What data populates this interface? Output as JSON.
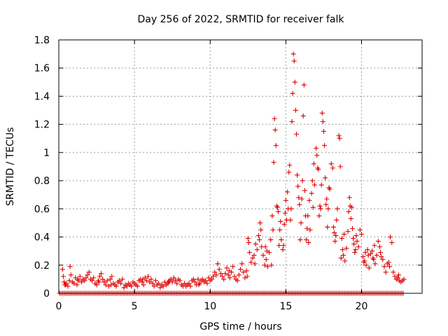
{
  "chart_data": {
    "type": "scatter",
    "title": "Day 256 of 2022, SRMTID for receiver falk",
    "xlabel": "GPS time / hours",
    "ylabel": "SRMTID / TECUs",
    "xlim": [
      0,
      24
    ],
    "ylim": [
      0,
      1.8
    ],
    "x_ticks": [
      0,
      5,
      10,
      15,
      20
    ],
    "y_ticks": [
      0,
      0.2,
      0.4,
      0.6,
      0.8,
      1,
      1.2,
      1.4,
      1.6,
      1.8
    ],
    "x_tick_labels": [
      "0",
      "5",
      "10",
      "15",
      "20"
    ],
    "y_tick_labels": [
      "0",
      "0.2",
      "0.4",
      "0.6",
      "0.8",
      "1",
      "1.2",
      "1.4",
      "1.6",
      "1.8"
    ],
    "grid": true,
    "marker": "+",
    "color": "#dd0000",
    "zero_points": {
      "x_start": 0.05,
      "x_end": 22.8,
      "x_step": 0.1,
      "y": 0
    },
    "series": [
      {
        "name": "SRMTID",
        "points": [
          [
            0.25,
            0.17
          ],
          [
            0.3,
            0.12
          ],
          [
            0.35,
            0.08
          ],
          [
            0.4,
            0.06
          ],
          [
            0.5,
            0.07
          ],
          [
            0.6,
            0.05
          ],
          [
            0.7,
            0.09
          ],
          [
            0.75,
            0.19
          ],
          [
            0.8,
            0.13
          ],
          [
            0.9,
            0.08
          ],
          [
            1.0,
            0.07
          ],
          [
            1.1,
            0.11
          ],
          [
            1.2,
            0.06
          ],
          [
            1.3,
            0.09
          ],
          [
            1.4,
            0.12
          ],
          [
            1.5,
            0.08
          ],
          [
            1.6,
            0.1
          ],
          [
            1.7,
            0.09
          ],
          [
            1.8,
            0.11
          ],
          [
            1.9,
            0.13
          ],
          [
            2.0,
            0.15
          ],
          [
            2.1,
            0.1
          ],
          [
            2.2,
            0.09
          ],
          [
            2.3,
            0.11
          ],
          [
            2.4,
            0.07
          ],
          [
            2.5,
            0.06
          ],
          [
            2.6,
            0.09
          ],
          [
            2.7,
            0.12
          ],
          [
            2.8,
            0.14
          ],
          [
            2.9,
            0.1
          ],
          [
            3.0,
            0.08
          ],
          [
            3.1,
            0.06
          ],
          [
            3.2,
            0.09
          ],
          [
            3.3,
            0.05
          ],
          [
            3.4,
            0.1
          ],
          [
            3.5,
            0.12
          ],
          [
            3.6,
            0.07
          ],
          [
            3.7,
            0.06
          ],
          [
            3.8,
            0.05
          ],
          [
            3.9,
            0.08
          ],
          [
            4.0,
            0.09
          ],
          [
            4.1,
            0.07
          ],
          [
            4.2,
            0.1
          ],
          [
            4.3,
            0.04
          ],
          [
            4.4,
            0.06
          ],
          [
            4.5,
            0.05
          ],
          [
            4.6,
            0.07
          ],
          [
            4.7,
            0.06
          ],
          [
            4.8,
            0.05
          ],
          [
            4.9,
            0.08
          ],
          [
            5.0,
            0.07
          ],
          [
            5.1,
            0.06
          ],
          [
            5.2,
            0.05
          ],
          [
            5.3,
            0.09
          ],
          [
            5.4,
            0.1
          ],
          [
            5.5,
            0.08
          ],
          [
            5.6,
            0.06
          ],
          [
            5.7,
            0.11
          ],
          [
            5.8,
            0.09
          ],
          [
            5.9,
            0.12
          ],
          [
            6.0,
            0.08
          ],
          [
            6.1,
            0.1
          ],
          [
            6.2,
            0.07
          ],
          [
            6.3,
            0.05
          ],
          [
            6.4,
            0.09
          ],
          [
            6.5,
            0.06
          ],
          [
            6.6,
            0.07
          ],
          [
            6.7,
            0.04
          ],
          [
            6.8,
            0.06
          ],
          [
            6.9,
            0.05
          ],
          [
            7.0,
            0.08
          ],
          [
            7.1,
            0.06
          ],
          [
            7.2,
            0.07
          ],
          [
            7.3,
            0.09
          ],
          [
            7.4,
            0.1
          ],
          [
            7.5,
            0.08
          ],
          [
            7.6,
            0.11
          ],
          [
            7.7,
            0.09
          ],
          [
            7.8,
            0.07
          ],
          [
            7.9,
            0.1
          ],
          [
            8.0,
            0.09
          ],
          [
            8.1,
            0.06
          ],
          [
            8.2,
            0.05
          ],
          [
            8.3,
            0.07
          ],
          [
            8.4,
            0.05
          ],
          [
            8.5,
            0.06
          ],
          [
            8.6,
            0.07
          ],
          [
            8.7,
            0.05
          ],
          [
            8.8,
            0.09
          ],
          [
            8.9,
            0.1
          ],
          [
            9.0,
            0.08
          ],
          [
            9.1,
            0.06
          ],
          [
            9.2,
            0.1
          ],
          [
            9.3,
            0.07
          ],
          [
            9.4,
            0.09
          ],
          [
            9.5,
            0.1
          ],
          [
            9.6,
            0.08
          ],
          [
            9.7,
            0.09
          ],
          [
            9.8,
            0.07
          ],
          [
            9.9,
            0.11
          ],
          [
            10.0,
            0.09
          ],
          [
            10.1,
            0.1
          ],
          [
            10.2,
            0.12
          ],
          [
            10.3,
            0.15
          ],
          [
            10.4,
            0.13
          ],
          [
            10.5,
            0.21
          ],
          [
            10.6,
            0.17
          ],
          [
            10.7,
            0.14
          ],
          [
            10.8,
            0.12
          ],
          [
            10.9,
            0.1
          ],
          [
            11.0,
            0.14
          ],
          [
            11.1,
            0.18
          ],
          [
            11.2,
            0.13
          ],
          [
            11.3,
            0.11
          ],
          [
            11.4,
            0.15
          ],
          [
            11.5,
            0.19
          ],
          [
            11.6,
            0.12
          ],
          [
            11.7,
            0.1
          ],
          [
            11.8,
            0.09
          ],
          [
            11.9,
            0.13
          ],
          [
            12.0,
            0.17
          ],
          [
            12.1,
            0.21
          ],
          [
            12.2,
            0.15
          ],
          [
            12.3,
            0.11
          ],
          [
            12.4,
            0.16
          ],
          [
            12.5,
            0.39
          ],
          [
            12.6,
            0.29
          ],
          [
            12.7,
            0.22
          ],
          [
            12.8,
            0.25
          ],
          [
            12.9,
            0.27
          ],
          [
            13.0,
            0.35
          ],
          [
            13.1,
            0.31
          ],
          [
            13.2,
            0.41
          ],
          [
            13.3,
            0.5
          ],
          [
            13.4,
            0.33
          ],
          [
            13.5,
            0.27
          ],
          [
            13.6,
            0.2
          ],
          [
            13.7,
            0.24
          ],
          [
            13.8,
            0.19
          ],
          [
            13.9,
            0.29
          ],
          [
            14.0,
            0.38
          ],
          [
            14.1,
            0.55
          ],
          [
            14.2,
            0.93
          ],
          [
            14.25,
            1.24
          ],
          [
            14.3,
            1.16
          ],
          [
            14.35,
            1.05
          ],
          [
            14.4,
            0.62
          ],
          [
            14.5,
            0.58
          ],
          [
            14.6,
            0.45
          ],
          [
            14.7,
            0.38
          ],
          [
            14.8,
            0.31
          ],
          [
            14.9,
            0.49
          ],
          [
            15.0,
            0.66
          ],
          [
            15.05,
            0.52
          ],
          [
            15.1,
            0.72
          ],
          [
            15.2,
            0.86
          ],
          [
            15.25,
            0.91
          ],
          [
            15.3,
            0.52
          ],
          [
            15.35,
            0.6
          ],
          [
            15.4,
            1.22
          ],
          [
            15.45,
            1.42
          ],
          [
            15.5,
            1.7
          ],
          [
            15.55,
            1.65
          ],
          [
            15.6,
            1.5
          ],
          [
            15.65,
            1.3
          ],
          [
            15.7,
            1.13
          ],
          [
            15.75,
            0.84
          ],
          [
            15.8,
            0.76
          ],
          [
            15.9,
            0.63
          ],
          [
            16.0,
            0.5
          ],
          [
            16.1,
            0.8
          ],
          [
            16.15,
            1.26
          ],
          [
            16.2,
            1.48
          ],
          [
            16.25,
            0.73
          ],
          [
            16.3,
            0.55
          ],
          [
            16.4,
            0.46
          ],
          [
            16.5,
            0.36
          ],
          [
            16.6,
            0.45
          ],
          [
            16.7,
            0.71
          ],
          [
            16.8,
            0.61
          ],
          [
            16.9,
            0.77
          ],
          [
            17.0,
            1.03
          ],
          [
            17.05,
            0.98
          ],
          [
            17.1,
            0.89
          ],
          [
            17.2,
            0.55
          ],
          [
            17.3,
            0.6
          ],
          [
            17.4,
            1.28
          ],
          [
            17.45,
            1.22
          ],
          [
            17.5,
            1.15
          ],
          [
            17.55,
            1.05
          ],
          [
            17.6,
            0.82
          ],
          [
            17.7,
            0.67
          ],
          [
            17.8,
            0.6
          ],
          [
            17.9,
            0.74
          ],
          [
            18.0,
            0.92
          ],
          [
            18.1,
            0.89
          ],
          [
            18.2,
            0.43
          ],
          [
            18.3,
            0.41
          ],
          [
            18.4,
            0.6
          ],
          [
            18.5,
            1.12
          ],
          [
            18.55,
            1.1
          ],
          [
            18.6,
            0.9
          ],
          [
            18.7,
            0.39
          ],
          [
            18.8,
            0.27
          ],
          [
            18.9,
            0.23
          ],
          [
            19.0,
            0.32
          ],
          [
            19.1,
            0.44
          ],
          [
            19.2,
            0.68
          ],
          [
            19.25,
            0.62
          ],
          [
            19.3,
            0.53
          ],
          [
            19.4,
            0.46
          ],
          [
            19.5,
            0.35
          ],
          [
            19.6,
            0.31
          ],
          [
            19.7,
            0.37
          ],
          [
            19.8,
            0.33
          ],
          [
            19.9,
            0.45
          ],
          [
            20.0,
            0.42
          ],
          [
            20.1,
            0.26
          ],
          [
            20.2,
            0.23
          ],
          [
            20.3,
            0.2
          ],
          [
            20.4,
            0.31
          ],
          [
            20.5,
            0.18
          ],
          [
            20.6,
            0.28
          ],
          [
            20.7,
            0.3
          ],
          [
            20.8,
            0.24
          ],
          [
            20.9,
            0.21
          ],
          [
            21.0,
            0.27
          ],
          [
            21.1,
            0.37
          ],
          [
            21.2,
            0.33
          ],
          [
            21.3,
            0.26
          ],
          [
            21.4,
            0.24
          ],
          [
            21.5,
            0.19
          ],
          [
            21.6,
            0.15
          ],
          [
            21.7,
            0.21
          ],
          [
            21.8,
            0.22
          ],
          [
            21.9,
            0.4
          ],
          [
            22.0,
            0.36
          ],
          [
            22.1,
            0.15
          ],
          [
            22.2,
            0.12
          ],
          [
            22.3,
            0.1
          ],
          [
            22.4,
            0.11
          ],
          [
            22.5,
            0.09
          ],
          [
            22.6,
            0.08
          ],
          [
            22.7,
            0.09
          ],
          [
            22.8,
            0.1
          ],
          [
            0.45,
            0.06
          ],
          [
            1.25,
            0.1
          ],
          [
            2.65,
            0.08
          ],
          [
            3.45,
            0.06
          ],
          [
            5.55,
            0.1
          ],
          [
            7.25,
            0.08
          ],
          [
            9.25,
            0.06
          ],
          [
            11.25,
            0.16
          ],
          [
            12.55,
            0.36
          ],
          [
            13.25,
            0.38
          ],
          [
            13.75,
            0.3
          ],
          [
            14.15,
            0.45
          ],
          [
            14.45,
            0.61
          ],
          [
            14.85,
            0.34
          ],
          [
            15.15,
            0.6
          ],
          [
            15.85,
            0.68
          ],
          [
            16.35,
            0.38
          ],
          [
            16.75,
            0.8
          ],
          [
            17.15,
            0.88
          ],
          [
            17.65,
            0.63
          ],
          [
            18.15,
            0.47
          ],
          [
            18.75,
            0.31
          ],
          [
            19.15,
            0.58
          ],
          [
            19.55,
            0.29
          ],
          [
            20.15,
            0.22
          ],
          [
            20.75,
            0.25
          ],
          [
            21.25,
            0.29
          ],
          [
            21.85,
            0.19
          ],
          [
            22.45,
            0.13
          ],
          [
            12.45,
            0.12
          ],
          [
            12.95,
            0.21
          ],
          [
            13.35,
            0.45
          ],
          [
            13.65,
            0.33
          ],
          [
            14.05,
            0.2
          ],
          [
            14.55,
            0.34
          ],
          [
            14.65,
            0.51
          ],
          [
            14.95,
            0.57
          ],
          [
            15.95,
            0.38
          ],
          [
            16.05,
            0.67
          ],
          [
            16.45,
            0.55
          ],
          [
            16.55,
            0.66
          ],
          [
            16.85,
            0.92
          ],
          [
            17.25,
            0.62
          ],
          [
            17.35,
            0.77
          ],
          [
            17.75,
            0.47
          ],
          [
            17.85,
            0.75
          ],
          [
            18.25,
            0.37
          ],
          [
            18.35,
            0.52
          ],
          [
            18.65,
            0.25
          ],
          [
            18.85,
            0.42
          ],
          [
            19.35,
            0.61
          ],
          [
            19.45,
            0.39
          ],
          [
            19.65,
            0.41
          ],
          [
            20.25,
            0.29
          ],
          [
            20.45,
            0.27
          ],
          [
            20.85,
            0.34
          ]
        ]
      }
    ]
  }
}
